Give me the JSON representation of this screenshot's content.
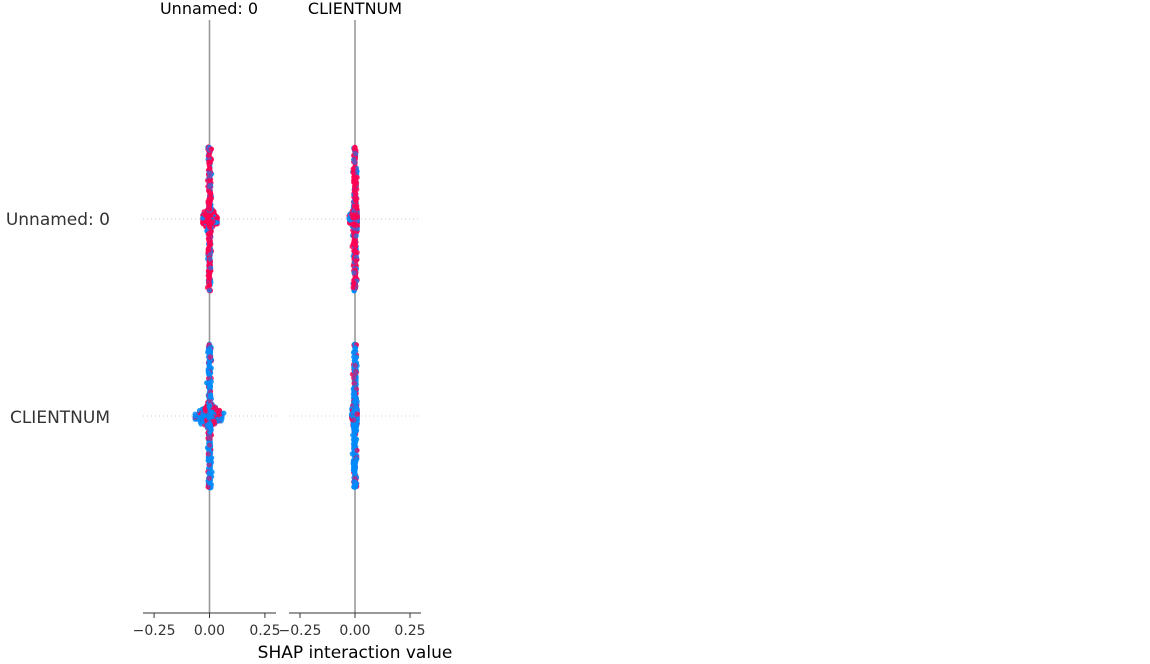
{
  "chart_data": {
    "type": "scatter",
    "subtype": "shap-interaction-summary",
    "xlabel": "SHAP interaction value",
    "features": [
      "Unnamed: 0",
      "CLIENTNUM"
    ],
    "columns": [
      {
        "title": "Unnamed: 0",
        "xlim": [
          -0.3,
          0.3
        ],
        "xticks": [
          -0.25,
          0.0,
          0.25
        ],
        "xtick_labels": [
          "−0.25",
          "0.00",
          "0.25"
        ]
      },
      {
        "title": "CLIENTNUM",
        "xlim": [
          -0.3,
          0.3
        ],
        "xticks": [
          -0.25,
          0.0,
          0.25
        ],
        "xtick_labels": [
          "−0.25",
          "0.00",
          "0.25"
        ]
      }
    ],
    "cells": [
      {
        "column": 0,
        "row": 0,
        "feature_pair": [
          "Unnamed: 0",
          "Unnamed: 0"
        ],
        "x_range": [
          -0.03,
          0.035
        ],
        "dominant_color": "#ff0052",
        "spread": 0.5
      },
      {
        "column": 0,
        "row": 1,
        "feature_pair": [
          "Unnamed: 0",
          "CLIENTNUM"
        ],
        "x_range": [
          -0.065,
          0.065
        ],
        "dominant_color": "#008bfb",
        "spread": 0.5
      },
      {
        "column": 1,
        "row": 0,
        "feature_pair": [
          "CLIENTNUM",
          "Unnamed: 0"
        ],
        "x_range": [
          -0.03,
          0.01
        ],
        "dominant_color": "#ff0052",
        "spread": 0.5
      },
      {
        "column": 1,
        "row": 1,
        "feature_pair": [
          "CLIENTNUM",
          "CLIENTNUM"
        ],
        "x_range": [
          -0.015,
          0.01
        ],
        "dominant_color": "#008bfb",
        "spread": 0.5
      }
    ],
    "colormap": [
      "#008bfb",
      "#ff0052"
    ],
    "grid": "row-dotted",
    "legend": "none"
  }
}
